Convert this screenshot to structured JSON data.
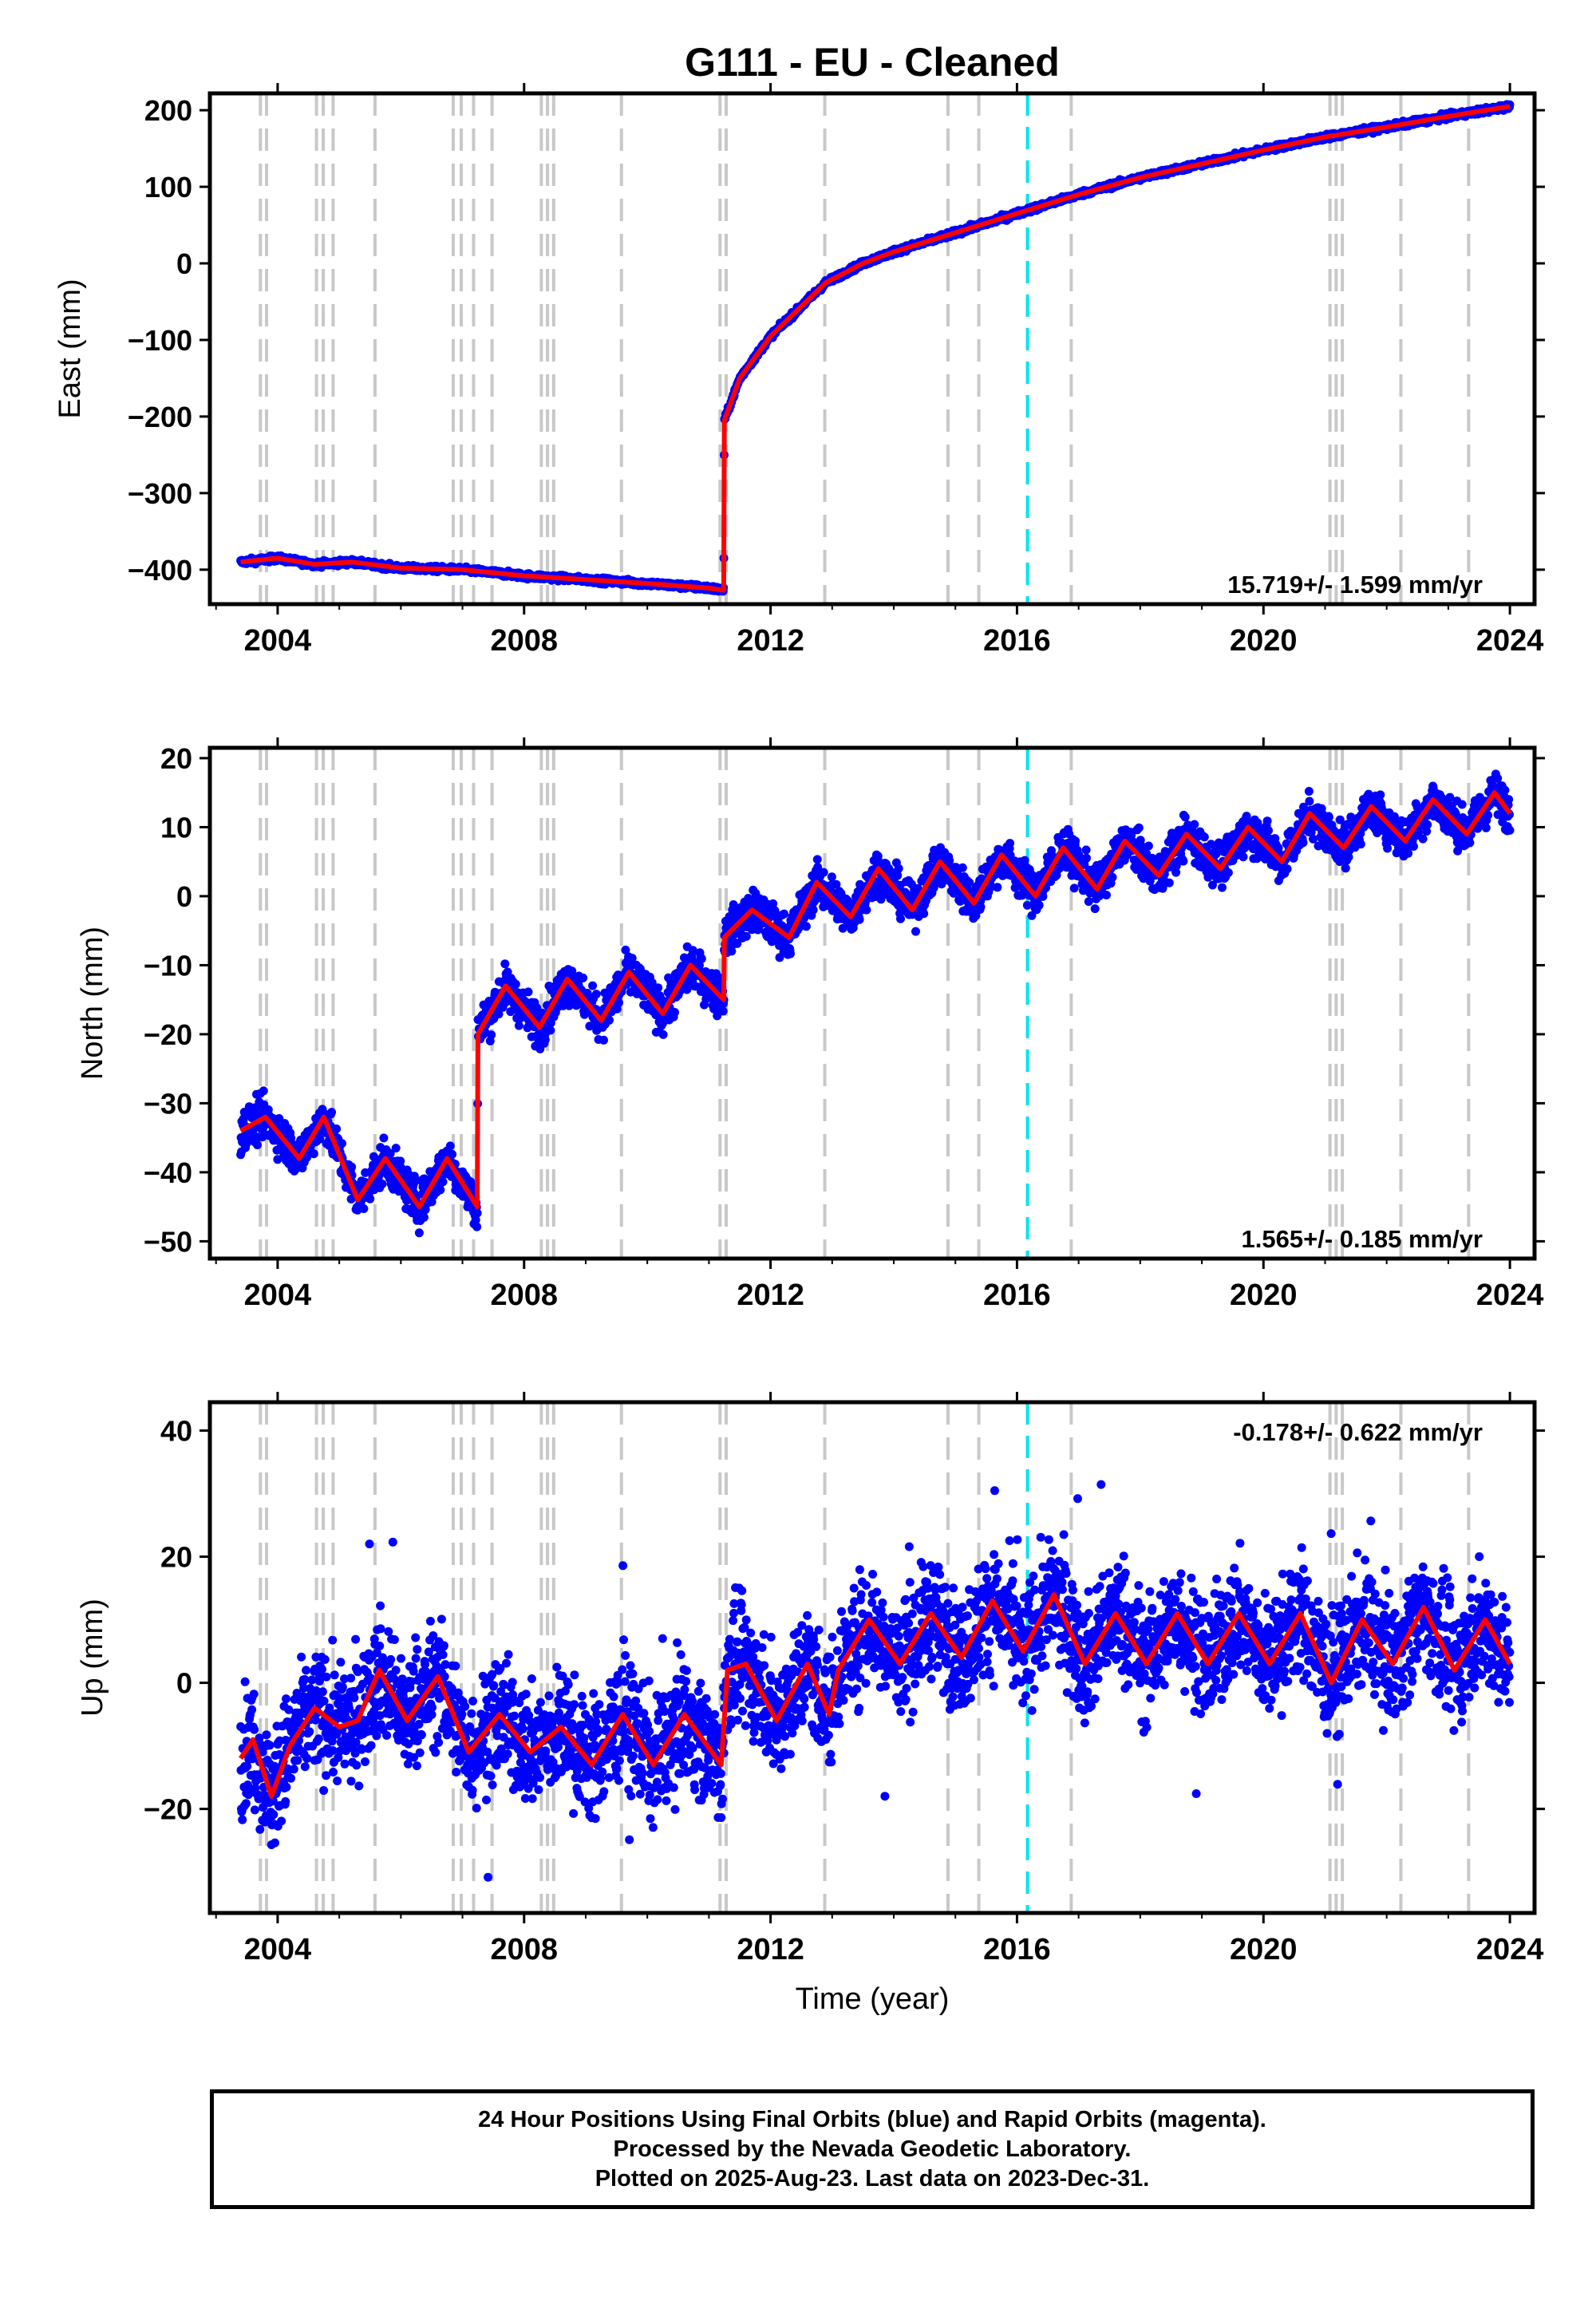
{
  "title": "G111  - EU - Cleaned",
  "xlabel": "Time (year)",
  "colors": {
    "data": "#0000ff",
    "model": "#ff0000",
    "event_line": "#c8c8c8",
    "equipment_line": "#00e5ee",
    "frame": "#000000"
  },
  "chart_data": [
    {
      "type": "scatter",
      "component": "east",
      "ylabel": "East (mm)",
      "xlim": [
        2002.9,
        2024.4
      ],
      "ylim": [
        -445,
        222
      ],
      "xticks": [
        2004,
        2008,
        2012,
        2016,
        2020,
        2024
      ],
      "yticks": [
        -400,
        -300,
        -200,
        -100,
        0,
        100,
        200
      ],
      "rate_label": "15.719+/- 1.599 mm/yr",
      "rate_position": "bottom-right",
      "series": [
        {
          "name": "",
          "role": "model",
          "x": [
            2003.4,
            2004.0,
            2004.6,
            2005.2,
            2006.0,
            2007.0,
            2008.0,
            2009.0,
            2010.0,
            2011.0,
            2011.24,
            2011.25,
            2011.5,
            2012.0,
            2012.9,
            2013.5,
            2014.0,
            2015.0,
            2016.0,
            2017.0,
            2018.0,
            2019.0,
            2020.0,
            2021.0,
            2022.0,
            2023.0,
            2024.0
          ],
          "y": [
            -390,
            -385,
            -393,
            -390,
            -398,
            -400,
            -408,
            -413,
            -418,
            -424,
            -427,
            -205,
            -150,
            -95,
            -25,
            0,
            15,
            40,
            65,
            90,
            112,
            130,
            148,
            165,
            178,
            192,
            205
          ]
        }
      ]
    },
    {
      "type": "scatter",
      "component": "north",
      "ylabel": "North (mm)",
      "xlim": [
        2002.9,
        2024.4
      ],
      "ylim": [
        -52.5,
        21.5
      ],
      "xticks": [
        2004,
        2008,
        2012,
        2016,
        2020,
        2024
      ],
      "yticks": [
        -50,
        -40,
        -30,
        -20,
        -10,
        0,
        10,
        20
      ],
      "rate_label": "1.565+/- 0.185 mm/yr",
      "rate_position": "bottom-right",
      "series": [
        {
          "name": "",
          "role": "model",
          "x": [
            2003.4,
            2003.8,
            2004.35,
            2004.75,
            2005.3,
            2005.75,
            2006.3,
            2006.75,
            2007.24,
            2007.25,
            2007.7,
            2008.25,
            2008.7,
            2009.25,
            2009.7,
            2010.25,
            2010.7,
            2011.24,
            2011.25,
            2011.7,
            2012.3,
            2012.75,
            2013.3,
            2013.75,
            2014.3,
            2014.75,
            2015.3,
            2015.75,
            2016.3,
            2016.75,
            2017.3,
            2017.75,
            2018.3,
            2018.75,
            2019.3,
            2019.75,
            2020.3,
            2020.75,
            2021.3,
            2021.75,
            2022.3,
            2022.75,
            2023.3,
            2023.75,
            2024.0
          ],
          "y": [
            -34,
            -32,
            -38,
            -32,
            -44,
            -38,
            -45,
            -38,
            -45,
            -20,
            -13,
            -19,
            -12,
            -18,
            -11,
            -17,
            -10,
            -15,
            -6,
            -2,
            -6,
            2,
            -3,
            4,
            -2,
            5,
            -1,
            6,
            0,
            7,
            1,
            8,
            3,
            9,
            4,
            10,
            5,
            12,
            7,
            13,
            8,
            14,
            9,
            15,
            12
          ]
        }
      ]
    },
    {
      "type": "scatter",
      "component": "up",
      "ylabel": "Up (mm)",
      "xlim": [
        2002.9,
        2024.4
      ],
      "ylim": [
        -36.5,
        44.5
      ],
      "xticks": [
        2004,
        2008,
        2012,
        2016,
        2020,
        2024
      ],
      "yticks": [
        -20,
        0,
        20,
        40
      ],
      "rate_label": "-0.178+/- 0.622 mm/yr",
      "rate_position": "top-right",
      "series": [
        {
          "name": "",
          "role": "model",
          "x": [
            2003.4,
            2003.6,
            2003.9,
            2004.2,
            2004.6,
            2005.0,
            2005.3,
            2005.65,
            2006.1,
            2006.6,
            2007.1,
            2007.6,
            2008.1,
            2008.6,
            2009.1,
            2009.6,
            2010.1,
            2010.6,
            2011.2,
            2011.3,
            2011.6,
            2012.1,
            2012.6,
            2012.95,
            2013.1,
            2013.6,
            2014.1,
            2014.6,
            2015.1,
            2015.6,
            2016.1,
            2016.6,
            2017.1,
            2017.6,
            2018.1,
            2018.6,
            2019.1,
            2019.6,
            2020.1,
            2020.6,
            2021.1,
            2021.6,
            2022.1,
            2022.6,
            2023.1,
            2023.6,
            2024.0
          ],
          "y": [
            -12,
            -9,
            -18,
            -10,
            -4,
            -7,
            -6,
            2,
            -6,
            1,
            -11,
            -5,
            -11,
            -7,
            -13,
            -5,
            -13,
            -5,
            -13,
            2,
            3,
            -6,
            3,
            -5,
            2,
            10,
            3,
            11,
            4,
            13,
            5,
            14,
            3,
            11,
            3,
            11,
            3,
            11,
            3,
            11,
            0,
            10,
            3,
            12,
            2,
            10,
            3
          ]
        }
      ]
    }
  ],
  "event_lines": [
    2003.72,
    2003.82,
    2004.63,
    2004.74,
    2004.9,
    2005.58,
    2006.85,
    2006.98,
    2007.18,
    2007.48,
    2008.28,
    2008.38,
    2008.48,
    2009.58,
    2011.18,
    2011.28,
    2012.88,
    2014.88,
    2015.38,
    2016.88,
    2021.08,
    2021.18,
    2021.28,
    2022.23,
    2023.33
  ],
  "equipment_lines": [
    2016.17
  ],
  "footer": {
    "line1": "24 Hour Positions Using Final Orbits (blue) and Rapid Orbits (magenta).",
    "line2": "Processed by the Nevada Geodetic Laboratory.",
    "line3": "Plotted on 2025-Aug-23. Last data on 2023-Dec-31."
  }
}
